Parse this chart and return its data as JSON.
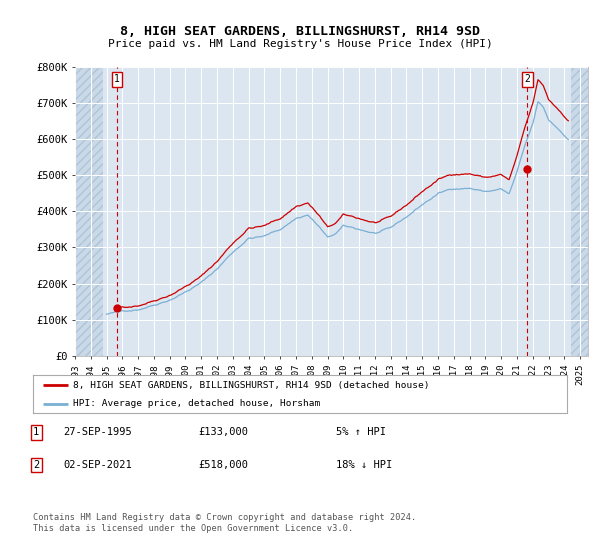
{
  "title": "8, HIGH SEAT GARDENS, BILLINGSHURST, RH14 9SD",
  "subtitle": "Price paid vs. HM Land Registry's House Price Index (HPI)",
  "ylim": [
    0,
    800000
  ],
  "yticks": [
    0,
    100000,
    200000,
    300000,
    400000,
    500000,
    600000,
    700000,
    800000
  ],
  "ytick_labels": [
    "£0",
    "£100K",
    "£200K",
    "£300K",
    "£400K",
    "£500K",
    "£600K",
    "£700K",
    "£800K"
  ],
  "background_color": "#ffffff",
  "plot_bg_color": "#dce6f1",
  "grid_color": "#ffffff",
  "hatch_color": "#c9d9e8",
  "sale1_date_num": 1995.667,
  "sale1_price": 133000,
  "sale2_date_num": 2021.667,
  "sale2_price": 518000,
  "red_line_color": "#cc0000",
  "blue_line_color": "#7bafd4",
  "legend_label_red": "8, HIGH SEAT GARDENS, BILLINGSHURST, RH14 9SD (detached house)",
  "legend_label_blue": "HPI: Average price, detached house, Horsham",
  "footnote1": "Contains HM Land Registry data © Crown copyright and database right 2024.",
  "footnote2": "This data is licensed under the Open Government Licence v3.0.",
  "table_row1": [
    "1",
    "27-SEP-1995",
    "£133,000",
    "5% ↑ HPI"
  ],
  "table_row2": [
    "2",
    "02-SEP-2021",
    "£518,000",
    "18% ↓ HPI"
  ]
}
